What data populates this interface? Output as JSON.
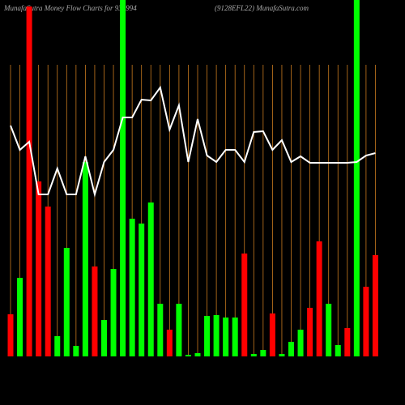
{
  "chart_data": {
    "type": "bar",
    "title": "MunafaSutra  Money Flow  Charts for 935994",
    "subtitle": "(9128EFL22) MunafaSutra.com",
    "categories": [
      null,
      null,
      null,
      null,
      null,
      null,
      null,
      null,
      null,
      null,
      null,
      null,
      null,
      null,
      null,
      null,
      null,
      null,
      null,
      null,
      null,
      null,
      null,
      null,
      null,
      null,
      null,
      null,
      null,
      null,
      null,
      null,
      null,
      null,
      null,
      null,
      null,
      null,
      null,
      null
    ],
    "values": [
      52,
      97,
      432,
      216,
      185,
      25,
      134,
      13,
      240,
      111,
      45,
      108,
      440,
      170,
      164,
      190,
      65,
      33,
      65,
      2,
      4,
      50,
      51,
      48,
      48,
      127,
      3,
      8,
      53,
      3,
      18,
      33,
      60,
      142,
      65,
      14,
      35,
      440,
      86,
      125
    ],
    "colors": [
      "#ff0000",
      "#00ff00",
      "#ff0000",
      "#ff0000",
      "#ff0000",
      "#00ff00",
      "#00ff00",
      "#00ff00",
      "#00ff00",
      "#ff0000",
      "#00ff00",
      "#00ff00",
      "#00ff00",
      "#00ff00",
      "#00ff00",
      "#00ff00",
      "#00ff00",
      "#ff0000",
      "#00ff00",
      "#00ff00",
      "#00ff00",
      "#00ff00",
      "#00ff00",
      "#00ff00",
      "#00ff00",
      "#ff0000",
      "#00ff00",
      "#00ff00",
      "#ff0000",
      "#00ff00",
      "#00ff00",
      "#00ff00",
      "#ff0000",
      "#ff0000",
      "#00ff00",
      "#00ff00",
      "#ff0000",
      "#00ff00",
      "#ff0000",
      "#ff0000"
    ],
    "line_values": [
      285,
      255,
      265,
      200,
      200,
      232,
      200,
      200,
      247,
      200,
      240,
      255,
      295,
      295,
      317,
      316,
      332,
      280,
      310,
      240,
      293,
      248,
      240,
      255,
      255,
      240,
      277,
      278,
      255,
      267,
      240,
      247,
      239,
      239,
      239,
      239,
      239,
      240,
      248,
      251
    ],
    "line_color": "#ffffff",
    "grid_color": "#c87a1e",
    "ylim": [
      0,
      440
    ]
  }
}
